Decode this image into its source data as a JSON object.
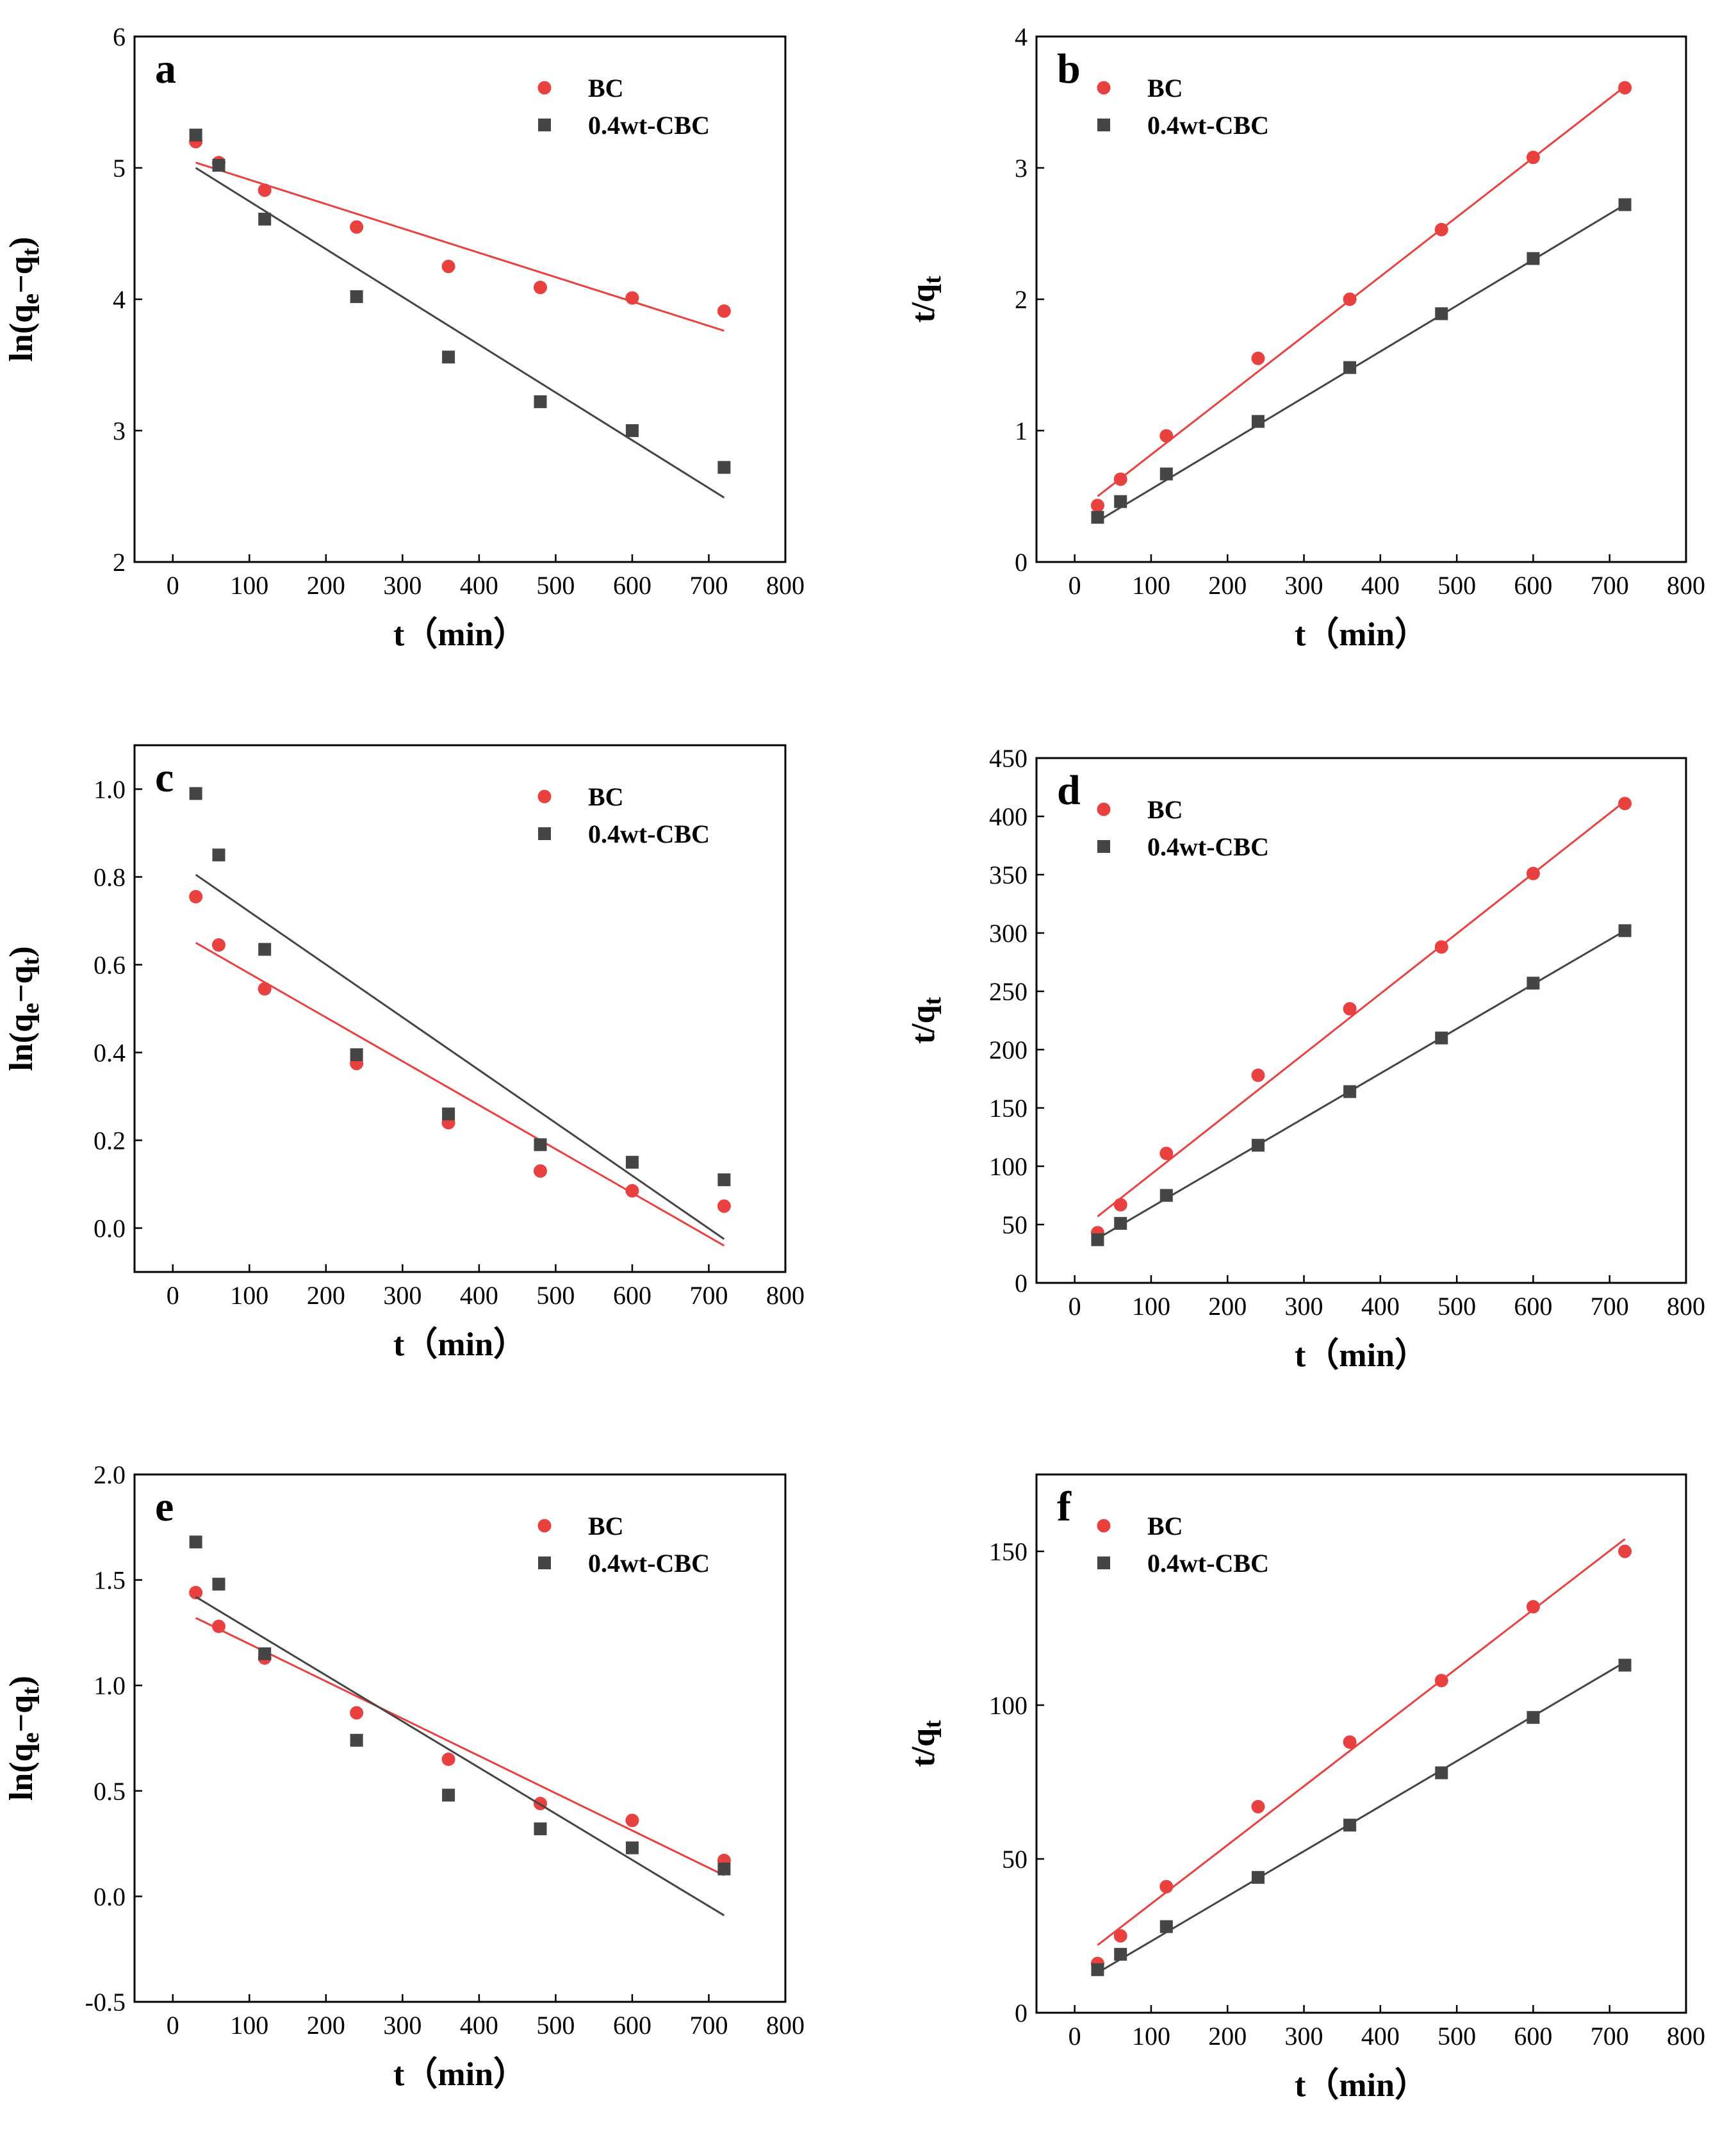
{
  "chart_data": [
    {
      "panel": "a",
      "type": "scatter",
      "xlabel": "t（min）",
      "ylabel_main": "ln(q",
      "ylabel_sub1": "e",
      "ylabel_mid": "−q",
      "ylabel_sub2": "t",
      "ylabel_end": ")",
      "xlim": [
        -50,
        800
      ],
      "ylim": [
        2,
        6
      ],
      "xticks": [
        0,
        100,
        200,
        300,
        400,
        500,
        600,
        700,
        800
      ],
      "yticks": [
        2,
        3,
        4,
        5,
        6
      ],
      "ytick_labels": [
        "2",
        "3",
        "4",
        "5",
        "6"
      ],
      "legend": {
        "position": "top-right"
      },
      "series": [
        {
          "name": "BC",
          "color": "#e8413f",
          "marker": "circle",
          "x": [
            30,
            60,
            120,
            240,
            360,
            480,
            600,
            720
          ],
          "y": [
            5.2,
            5.04,
            4.83,
            4.55,
            4.25,
            4.09,
            4.01,
            3.91
          ],
          "fit": [
            [
              30,
              5.04
            ],
            [
              720,
              3.76
            ]
          ]
        },
        {
          "name": "0.4wt-CBC",
          "color": "#454545",
          "marker": "square",
          "x": [
            30,
            60,
            120,
            240,
            360,
            480,
            600,
            720
          ],
          "y": [
            5.25,
            5.02,
            4.61,
            4.02,
            3.56,
            3.22,
            3.0,
            2.72
          ],
          "fit": [
            [
              30,
              5.0
            ],
            [
              720,
              2.49
            ]
          ]
        }
      ]
    },
    {
      "panel": "b",
      "type": "scatter",
      "xlabel": "t（min）",
      "ylabel_main": "t/q",
      "ylabel_sub1": "t",
      "ylabel_mid": "",
      "ylabel_sub2": "",
      "ylabel_end": "",
      "xlim": [
        -50,
        800
      ],
      "ylim": [
        0,
        4
      ],
      "xticks": [
        0,
        100,
        200,
        300,
        400,
        500,
        600,
        700,
        800
      ],
      "yticks": [
        0,
        1,
        2,
        3,
        4
      ],
      "ytick_labels": [
        "0",
        "1",
        "2",
        "3",
        "4"
      ],
      "legend": {
        "position": "top-left"
      },
      "series": [
        {
          "name": "BC",
          "color": "#e8413f",
          "marker": "circle",
          "x": [
            30,
            60,
            120,
            240,
            360,
            480,
            600,
            720
          ],
          "y": [
            0.43,
            0.63,
            0.96,
            1.55,
            2.0,
            2.53,
            3.08,
            3.61
          ],
          "fit": [
            [
              30,
              0.5
            ],
            [
              720,
              3.62
            ]
          ]
        },
        {
          "name": "0.4wt-CBC",
          "color": "#454545",
          "marker": "square",
          "x": [
            30,
            60,
            120,
            240,
            360,
            480,
            600,
            720
          ],
          "y": [
            0.34,
            0.46,
            0.67,
            1.07,
            1.48,
            1.89,
            2.31,
            2.72
          ],
          "fit": [
            [
              30,
              0.31
            ],
            [
              720,
              2.72
            ]
          ]
        }
      ]
    },
    {
      "panel": "c",
      "type": "scatter",
      "xlabel": "t（min）",
      "ylabel_main": "ln(q",
      "ylabel_sub1": "e",
      "ylabel_mid": "−q",
      "ylabel_sub2": "t",
      "ylabel_end": ")",
      "xlim": [
        -50,
        800
      ],
      "ylim": [
        -0.1,
        1.1
      ],
      "xticks": [
        0,
        100,
        200,
        300,
        400,
        500,
        600,
        700,
        800
      ],
      "yticks": [
        0.0,
        0.2,
        0.4,
        0.6,
        0.8,
        1.0
      ],
      "ytick_labels": [
        "0.0",
        "0.2",
        "0.4",
        "0.6",
        "0.8",
        "1.0"
      ],
      "legend": {
        "position": "top-right"
      },
      "series": [
        {
          "name": "BC",
          "color": "#e8413f",
          "marker": "circle",
          "x": [
            30,
            60,
            120,
            240,
            360,
            480,
            600,
            720
          ],
          "y": [
            0.755,
            0.645,
            0.545,
            0.375,
            0.24,
            0.13,
            0.085,
            0.05
          ],
          "fit": [
            [
              30,
              0.65
            ],
            [
              720,
              -0.04
            ]
          ]
        },
        {
          "name": "0.4wt-CBC",
          "color": "#454545",
          "marker": "square",
          "x": [
            30,
            60,
            120,
            240,
            360,
            480,
            600,
            720
          ],
          "y": [
            0.99,
            0.85,
            0.635,
            0.395,
            0.26,
            0.19,
            0.15,
            0.11
          ],
          "fit": [
            [
              30,
              0.805
            ],
            [
              720,
              -0.025
            ]
          ]
        }
      ]
    },
    {
      "panel": "d",
      "type": "scatter",
      "xlabel": "t（min）",
      "ylabel_main": "t/q",
      "ylabel_sub1": "t",
      "ylabel_mid": "",
      "ylabel_sub2": "",
      "ylabel_end": "",
      "xlim": [
        -50,
        800
      ],
      "ylim": [
        0,
        450
      ],
      "xticks": [
        0,
        100,
        200,
        300,
        400,
        500,
        600,
        700,
        800
      ],
      "yticks": [
        0,
        50,
        100,
        150,
        200,
        250,
        300,
        350,
        400,
        450
      ],
      "ytick_labels": [
        "0",
        "50",
        "100",
        "150",
        "200",
        "250",
        "300",
        "350",
        "400",
        "450"
      ],
      "legend": {
        "position": "top-left"
      },
      "series": [
        {
          "name": "BC",
          "color": "#e8413f",
          "marker": "circle",
          "x": [
            30,
            60,
            120,
            240,
            360,
            480,
            600,
            720
          ],
          "y": [
            43,
            67,
            111,
            178,
            235,
            288,
            351,
            411
          ],
          "fit": [
            [
              30,
              57
            ],
            [
              720,
              413
            ]
          ]
        },
        {
          "name": "0.4wt-CBC",
          "color": "#454545",
          "marker": "square",
          "x": [
            30,
            60,
            120,
            240,
            360,
            480,
            600,
            720
          ],
          "y": [
            37,
            51,
            75,
            118,
            164,
            210,
            257,
            302
          ],
          "fit": [
            [
              30,
              38
            ],
            [
              720,
              302
            ]
          ]
        }
      ]
    },
    {
      "panel": "e",
      "type": "scatter",
      "xlabel": "t（min）",
      "ylabel_main": "ln(q",
      "ylabel_sub1": "e",
      "ylabel_mid": "−q",
      "ylabel_sub2": "t",
      "ylabel_end": ")",
      "xlim": [
        -50,
        800
      ],
      "ylim": [
        -0.5,
        2.0
      ],
      "xticks": [
        0,
        100,
        200,
        300,
        400,
        500,
        600,
        700,
        800
      ],
      "yticks": [
        -0.5,
        0.0,
        0.5,
        1.0,
        1.5,
        2.0
      ],
      "ytick_labels": [
        "-0.5",
        "0.0",
        "0.5",
        "1.0",
        "1.5",
        "2.0"
      ],
      "legend": {
        "position": "top-right"
      },
      "series": [
        {
          "name": "BC",
          "color": "#e8413f",
          "marker": "circle",
          "x": [
            30,
            60,
            120,
            240,
            360,
            480,
            600,
            720
          ],
          "y": [
            1.44,
            1.28,
            1.13,
            0.87,
            0.65,
            0.44,
            0.36,
            0.17
          ],
          "fit": [
            [
              30,
              1.32
            ],
            [
              720,
              0.1
            ]
          ]
        },
        {
          "name": "0.4wt-CBC",
          "color": "#454545",
          "marker": "square",
          "x": [
            30,
            60,
            120,
            240,
            360,
            480,
            600,
            720
          ],
          "y": [
            1.68,
            1.48,
            1.15,
            0.74,
            0.48,
            0.32,
            0.23,
            0.13
          ],
          "fit": [
            [
              30,
              1.42
            ],
            [
              720,
              -0.09
            ]
          ]
        }
      ]
    },
    {
      "panel": "f",
      "type": "scatter",
      "xlabel": "t（min）",
      "ylabel_main": "t/q",
      "ylabel_sub1": "t",
      "ylabel_mid": "",
      "ylabel_sub2": "",
      "ylabel_end": "",
      "xlim": [
        -50,
        800
      ],
      "ylim": [
        0,
        175
      ],
      "xticks": [
        0,
        100,
        200,
        300,
        400,
        500,
        600,
        700,
        800
      ],
      "yticks": [
        0,
        50,
        100,
        150
      ],
      "ytick_labels": [
        "0",
        "50",
        "100",
        "150"
      ],
      "legend": {
        "position": "top-left"
      },
      "series": [
        {
          "name": "BC",
          "color": "#e8413f",
          "marker": "circle",
          "x": [
            30,
            60,
            120,
            240,
            360,
            480,
            600,
            720
          ],
          "y": [
            16,
            25,
            41,
            67,
            88,
            108,
            132,
            150
          ],
          "fit": [
            [
              30,
              22
            ],
            [
              720,
              154
            ]
          ]
        },
        {
          "name": "0.4wt-CBC",
          "color": "#454545",
          "marker": "square",
          "x": [
            30,
            60,
            120,
            240,
            360,
            480,
            600,
            720
          ],
          "y": [
            14,
            19,
            28,
            44,
            61,
            78,
            96,
            113
          ],
          "fit": [
            [
              30,
              13
            ],
            [
              720,
              114
            ]
          ]
        }
      ]
    }
  ]
}
